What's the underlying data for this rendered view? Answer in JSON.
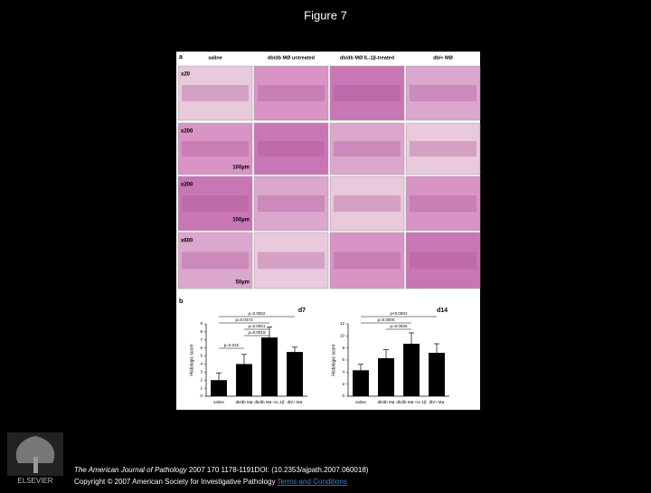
{
  "header": {
    "title": "Figure 7"
  },
  "figure": {
    "panel_a": {
      "label": "a",
      "columns": [
        "saline",
        "db/db MØ untreated",
        "db/db MØ IL-1β-treated",
        "db/+ MØ"
      ],
      "rows": [
        "x20",
        "x200",
        "x200",
        "x600"
      ],
      "scale_bars": [
        "100µm",
        "100µm",
        "50µm"
      ]
    },
    "panel_b": {
      "label": "b",
      "charts": [
        {
          "type": "bar",
          "title": "d7",
          "y_label": "Histologic score",
          "categories": [
            "saline",
            "db/db Mø",
            "db/db Mø +IL-1β",
            "db/+ Mø"
          ],
          "values": [
            2,
            4,
            7.3,
            5.5
          ],
          "errors": [
            0.9,
            1.2,
            1.3,
            0.6
          ],
          "ylim": [
            0,
            9
          ],
          "yticks": [
            0,
            1,
            2,
            3,
            4,
            5,
            6,
            7,
            8,
            9
          ],
          "p_values": [
            "p=0.0002",
            "p=0.0473",
            "p=0.0001",
            "p=0.0019",
            "p=0.022"
          ]
        },
        {
          "type": "bar",
          "title": "d14",
          "y_label": "Histologic score",
          "categories": [
            "saline",
            "db/db Mø",
            "db/db Mø +IL-1β",
            "db/+ Mø"
          ],
          "values": [
            4.3,
            6.3,
            8.7,
            7.2
          ],
          "errors": [
            1,
            1.4,
            1.8,
            1.5
          ],
          "ylim": [
            0,
            12
          ],
          "yticks": [
            0,
            2,
            4,
            6,
            8,
            10,
            12
          ],
          "p_values": [
            "p<0.0002",
            "p=0.0006",
            "p=0.0026"
          ]
        }
      ]
    }
  },
  "footer": {
    "publisher": "ELSEVIER",
    "citation_journal": "The American Journal of Pathology",
    "citation_rest": " 2007 170 1178-1191DOI: (10.2353/ajpath.2007.060018)",
    "copyright": "Copyright © 2007 American Society for Investigative Pathology",
    "terms_link": "Terms and Conditions"
  }
}
